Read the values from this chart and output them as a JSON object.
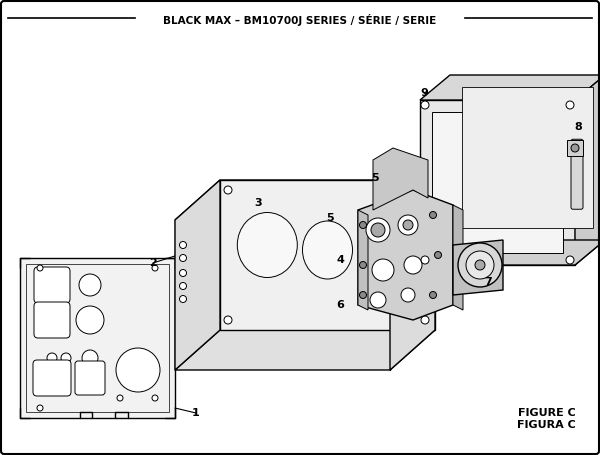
{
  "title": "BLACK MAX – BM10700J SERIES / SÉRIE / SERIE",
  "figure_label": "FIGURE C",
  "figura_label": "FIGURA C",
  "bg_color": "#ffffff",
  "line_color": "#000000",
  "text_color": "#000000"
}
